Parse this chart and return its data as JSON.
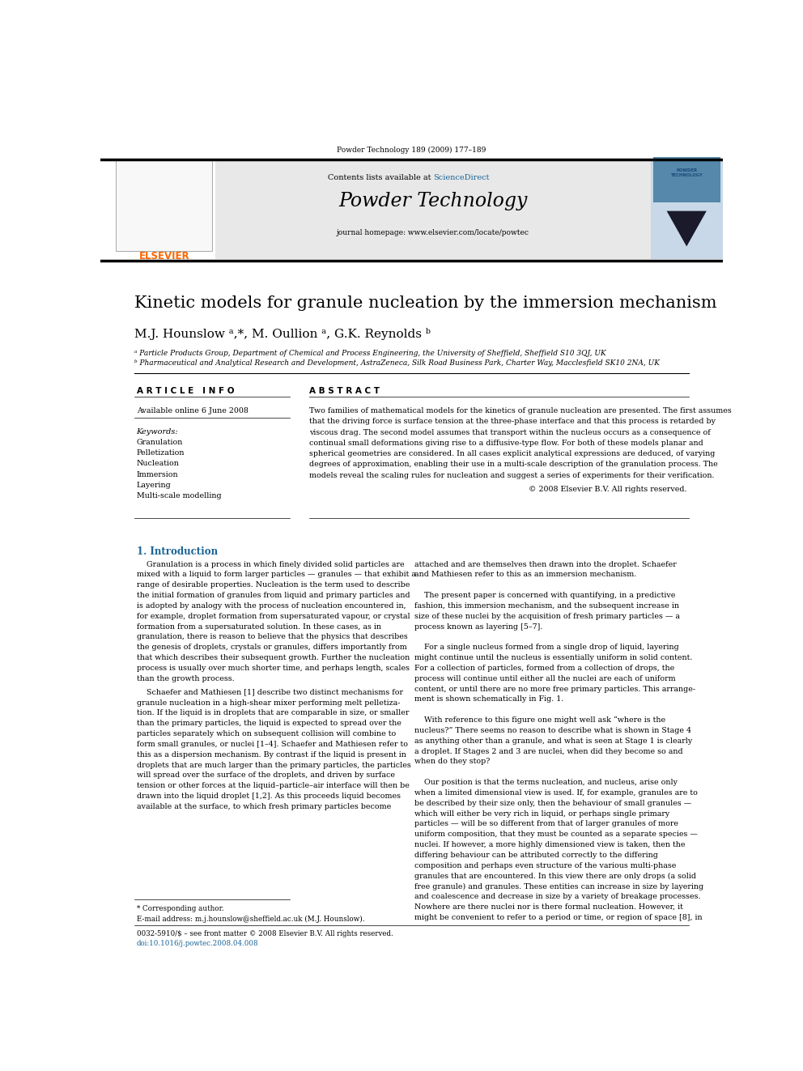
{
  "page_width": 9.92,
  "page_height": 13.23,
  "bg_color": "#ffffff",
  "journal_citation": "Powder Technology 189 (2009) 177–189",
  "header_bg": "#e8e8e8",
  "contents_text": "Contents lists available at ",
  "sciencedirect_text": "ScienceDirect",
  "sciencedirect_color": "#1a6496",
  "journal_title": "Powder Technology",
  "journal_homepage": "journal homepage: www.elsevier.com/locate/powtec",
  "elsevier_color": "#FF6600",
  "article_title": "Kinetic models for granule nucleation by the immersion mechanism",
  "authors": "M.J. Hounslow ᵃ,*, M. Oullion ᵃ, G.K. Reynolds ᵇ",
  "affil_a": "ᵃ Particle Products Group, Department of Chemical and Process Engineering, the University of Sheffield, Sheffield S10 3QJ, UK",
  "affil_b": "ᵇ Pharmaceutical and Analytical Research and Development, AstraZeneca, Silk Road Business Park, Charter Way, Macclesfield SK10 2NA, UK",
  "article_info_title": "A R T I C L E   I N F O",
  "abstract_title": "A B S T R A C T",
  "available_online": "Available online 6 June 2008",
  "keywords_label": "Keywords:",
  "keywords": [
    "Granulation",
    "Pelletization",
    "Nucleation",
    "Immersion",
    "Layering",
    "Multi-scale modelling"
  ],
  "copyright": "© 2008 Elsevier B.V. All rights reserved.",
  "section1_title": "1. Introduction",
  "footer_left": "0032-5910/$ – see front matter © 2008 Elsevier B.V. All rights reserved.",
  "footer_doi": "doi:10.1016/j.powtec.2008.04.008",
  "doi_color": "#1a6496"
}
